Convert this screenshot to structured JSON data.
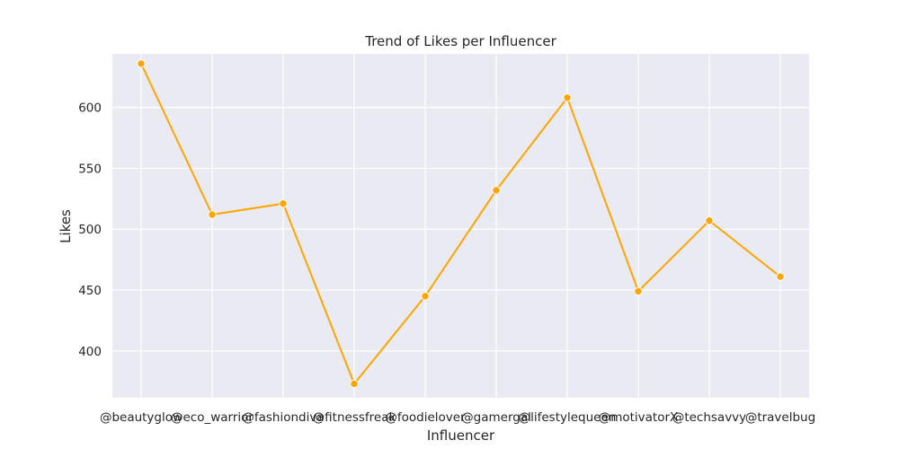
{
  "chart_data": {
    "type": "line",
    "title": "Trend of Likes per Influencer",
    "xlabel": "Influencer",
    "ylabel": "Likes",
    "categories": [
      "@beautyglow",
      "@eco_warrior",
      "@fashiondiva",
      "@fitnessfreak",
      "@foodielover",
      "@gamergal",
      "@lifestylequeen",
      "@motivatorX",
      "@techsavvy",
      "@travelbug"
    ],
    "series": [
      {
        "values": [
          636,
          512,
          521,
          373,
          445,
          532,
          608,
          449,
          507,
          461
        ]
      }
    ],
    "ylim": [
      361.5,
      644
    ],
    "yticks": [
      400,
      450,
      500,
      550,
      600
    ],
    "grid": true,
    "colors": {
      "line": "#FFA500",
      "background": "#EAEAF2",
      "grid": "#FFFFFF"
    }
  }
}
